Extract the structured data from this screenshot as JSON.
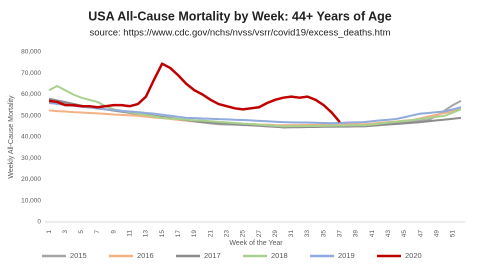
{
  "chart_data": {
    "type": "line",
    "title": "USA All-Cause  Mortality by Week: 44+ Years of Age",
    "subtitle": "source: https://www.cdc.gov/nchs/nvss/vsrr/covid19/excess_deaths.htm",
    "x_label": "Week of the Year",
    "y_label": "Weekly All-Cause Mortality",
    "categories": [
      "1",
      null,
      "3",
      null,
      "5",
      null,
      "7",
      null,
      "9",
      null,
      "11",
      null,
      "13",
      null,
      "15",
      null,
      "17",
      null,
      "19",
      null,
      "21",
      null,
      "23",
      null,
      "25",
      null,
      "27",
      null,
      "29",
      null,
      "31",
      null,
      "33",
      null,
      "35",
      null,
      "37",
      null,
      "39",
      null,
      "41",
      null,
      "43",
      null,
      "45",
      null,
      "47",
      null,
      "49",
      null,
      "51",
      null
    ],
    "ylim": [
      0,
      80000
    ],
    "yticks": [
      0,
      {
        "value": 10000,
        "label": "10,000"
      },
      {
        "value": 20000,
        "label": "20,000"
      },
      {
        "value": 30000,
        "label": "30,000"
      },
      {
        "value": 40000,
        "label": "40,000"
      },
      {
        "value": 50000,
        "label": "50,000"
      },
      {
        "value": 60000,
        "label": "60,000"
      },
      {
        "value": 70000,
        "label": "70,000"
      },
      {
        "value": 80000,
        "label": "80,000"
      }
    ],
    "grid": false,
    "legend": "bottom",
    "series": [
      {
        "name": "2015",
        "color": "#a5a5a5",
        "values": [
          57000,
          56400,
          55900,
          55300,
          54700,
          54100,
          53600,
          53000,
          52400,
          51900,
          51300,
          50700,
          50100,
          49600,
          49000,
          48600,
          48100,
          47700,
          47300,
          46900,
          46400,
          46000,
          45900,
          45800,
          45600,
          45500,
          45400,
          45300,
          45100,
          45000,
          45100,
          45100,
          45200,
          45200,
          45300,
          45300,
          45400,
          45400,
          45500,
          45500,
          45800,
          46100,
          46400,
          46800,
          47100,
          47400,
          47700,
          48000,
          50000,
          52500,
          55000,
          57000
        ]
      },
      {
        "name": "2016",
        "color": "#f4b183",
        "values": [
          52500,
          52200,
          52000,
          51700,
          51500,
          51300,
          51100,
          50900,
          50600,
          50400,
          50200,
          50000,
          49600,
          49200,
          48900,
          48500,
          48100,
          47700,
          47400,
          47000,
          46900,
          46700,
          46500,
          46400,
          46200,
          46100,
          45900,
          45800,
          45600,
          45500,
          45600,
          45600,
          45700,
          45700,
          45800,
          45800,
          45900,
          45900,
          46000,
          46000,
          46300,
          46700,
          47000,
          47300,
          47700,
          48000,
          48800,
          49700,
          50500,
          51300,
          52200,
          53000
        ]
      },
      {
        "name": "2017",
        "color": "#8c8c8c",
        "values": [
          58000,
          57200,
          56400,
          55600,
          54800,
          54000,
          53500,
          53000,
          52500,
          52000,
          51500,
          51000,
          50500,
          50000,
          49500,
          49000,
          48500,
          48000,
          47500,
          47000,
          46800,
          46500,
          46300,
          46000,
          45800,
          45500,
          45300,
          45000,
          44800,
          44500,
          44600,
          44600,
          44700,
          44700,
          44800,
          44800,
          44900,
          44900,
          45000,
          45000,
          45300,
          45600,
          45900,
          46100,
          46400,
          46700,
          47000,
          47400,
          47800,
          48200,
          48600,
          49000
        ]
      },
      {
        "name": "2018",
        "color": "#a9d18e",
        "values": [
          62000,
          64000,
          62000,
          60000,
          58500,
          57500,
          56500,
          54500,
          53000,
          52300,
          51700,
          51000,
          50300,
          49700,
          49000,
          48700,
          48500,
          48200,
          47900,
          47700,
          47400,
          47100,
          46900,
          46600,
          46300,
          46100,
          45800,
          45500,
          45300,
          45000,
          45100,
          45100,
          45200,
          45200,
          45300,
          45300,
          45400,
          45400,
          45500,
          45500,
          45900,
          46300,
          46800,
          47200,
          47600,
          48000,
          48500,
          49000,
          49500,
          50000,
          51500,
          53000
        ]
      },
      {
        "name": "2019",
        "color": "#8faadc",
        "values": [
          56000,
          55600,
          55100,
          54700,
          54300,
          53900,
          53400,
          53000,
          52700,
          52300,
          52000,
          51700,
          51300,
          51000,
          50500,
          50000,
          49500,
          49000,
          48900,
          48700,
          48600,
          48400,
          48300,
          48100,
          48000,
          47800,
          47600,
          47400,
          47200,
          47000,
          46900,
          46800,
          46800,
          46700,
          46600,
          46500,
          46600,
          46800,
          46900,
          47000,
          47400,
          47800,
          48100,
          48500,
          49300,
          50200,
          51000,
          51300,
          51700,
          52000,
          53000,
          54000
        ]
      },
      {
        "name": "2020",
        "color": "#c00000",
        "values": [
          57000,
          56500,
          55000,
          55000,
          54500,
          54500,
          54000,
          54500,
          55000,
          55000,
          54500,
          55500,
          59000,
          67000,
          74500,
          72500,
          69000,
          65000,
          62000,
          60000,
          57500,
          55500,
          54500,
          53500,
          53000,
          53500,
          54000,
          56000,
          57500,
          58500,
          59000,
          58500,
          59000,
          57500,
          55000,
          51500,
          47000,
          null,
          null,
          null,
          null,
          null,
          null,
          null,
          null,
          null,
          null,
          null,
          null,
          null,
          null,
          null
        ]
      }
    ]
  }
}
